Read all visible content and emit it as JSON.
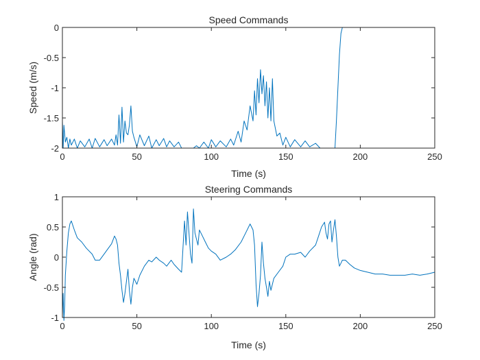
{
  "chart_data": [
    {
      "type": "line",
      "title": "Speed Commands",
      "xlabel": "Time (s)",
      "ylabel": "Speed (m/s)",
      "xlim": [
        0,
        250
      ],
      "ylim": [
        -2,
        0
      ],
      "xticks": [
        0,
        50,
        100,
        150,
        200,
        250
      ],
      "yticks": [
        0,
        -0.5,
        -1,
        -1.5,
        -2
      ],
      "xtick_labels": [
        "0",
        "50",
        "100",
        "150",
        "200",
        "250"
      ],
      "ytick_labels": [
        "0",
        "-0.5",
        "-1",
        "-1.5",
        "-2"
      ],
      "grid": false,
      "series": [
        {
          "name": "speed",
          "color": "#0072BD",
          "x": [
            0,
            0.5,
            1,
            2,
            3,
            4,
            5,
            6,
            8,
            10,
            12,
            15,
            18,
            20,
            22,
            25,
            28,
            30,
            33,
            35,
            36,
            37,
            38,
            39,
            40,
            41,
            42,
            43,
            44,
            45,
            46,
            47,
            48,
            50,
            52,
            55,
            58,
            60,
            63,
            65,
            68,
            70,
            72,
            75,
            78,
            80,
            82,
            85,
            88,
            90,
            92,
            95,
            98,
            100,
            103,
            106,
            110,
            113,
            115,
            118,
            120,
            122,
            124,
            126,
            128,
            129,
            130,
            131,
            132,
            133,
            134,
            135,
            136,
            137,
            138,
            139,
            140,
            141,
            142,
            144,
            146,
            148,
            150,
            153,
            156,
            160,
            163,
            166,
            170,
            173,
            175,
            178,
            181,
            183,
            184,
            186,
            187,
            188,
            190,
            200,
            210,
            220,
            230,
            240,
            250
          ],
          "y": [
            -1.55,
            -2.0,
            -1.62,
            -1.9,
            -1.82,
            -2.0,
            -1.85,
            -1.95,
            -1.85,
            -2.0,
            -1.88,
            -1.98,
            -1.85,
            -2.0,
            -1.84,
            -1.98,
            -1.86,
            -1.96,
            -1.85,
            -1.95,
            -1.78,
            -1.95,
            -1.45,
            -1.92,
            -1.32,
            -1.9,
            -1.55,
            -1.75,
            -1.78,
            -1.62,
            -1.3,
            -1.72,
            -1.82,
            -1.98,
            -1.78,
            -1.96,
            -1.8,
            -2.0,
            -1.86,
            -1.96,
            -1.84,
            -1.98,
            -1.88,
            -1.98,
            -1.9,
            -2.0,
            -2.0,
            -2.0,
            -2.0,
            -1.96,
            -2.0,
            -1.9,
            -2.0,
            -1.86,
            -1.98,
            -1.88,
            -1.98,
            -1.85,
            -1.95,
            -1.72,
            -1.9,
            -1.55,
            -1.7,
            -1.3,
            -1.55,
            -1.05,
            -1.45,
            -0.85,
            -1.25,
            -0.7,
            -1.1,
            -0.8,
            -1.3,
            -0.9,
            -1.5,
            -1.0,
            -1.55,
            -0.85,
            -1.55,
            -1.8,
            -1.75,
            -1.95,
            -1.82,
            -1.98,
            -1.86,
            -1.98,
            -1.88,
            -1.98,
            -1.92,
            -2.0,
            -2.0,
            -2.0,
            -2.0,
            -2.0,
            -1.55,
            -0.45,
            -0.1,
            0.0,
            0.0,
            0.0,
            0.0,
            0.0,
            0.0,
            0.0,
            0.0
          ]
        }
      ]
    },
    {
      "type": "line",
      "title": "Steering Commands",
      "xlabel": "Time (s)",
      "ylabel": "Angle (rad)",
      "xlim": [
        0,
        250
      ],
      "ylim": [
        -1,
        1
      ],
      "xticks": [
        0,
        50,
        100,
        150,
        200,
        250
      ],
      "yticks": [
        1,
        0.5,
        0,
        -0.5,
        -1
      ],
      "xtick_labels": [
        "0",
        "50",
        "100",
        "150",
        "200",
        "250"
      ],
      "ytick_labels": [
        "1",
        "0.5",
        "0",
        "-0.5",
        "-1"
      ],
      "grid": false,
      "series": [
        {
          "name": "steering",
          "color": "#0072BD",
          "x": [
            0,
            0.5,
            1,
            1.5,
            2,
            3,
            4,
            5,
            6,
            8,
            10,
            13,
            16,
            20,
            22,
            25,
            28,
            30,
            33,
            35,
            36,
            37,
            38,
            39,
            40,
            41,
            42,
            43,
            44,
            45,
            46,
            47,
            48,
            50,
            52,
            55,
            58,
            60,
            63,
            65,
            68,
            70,
            73,
            75,
            78,
            80,
            82,
            83,
            84,
            85,
            86,
            87,
            88,
            89,
            90,
            91,
            92,
            94,
            96,
            98,
            100,
            103,
            106,
            110,
            113,
            116,
            120,
            123,
            126,
            128,
            129,
            130,
            131,
            132,
            133,
            134,
            135,
            136,
            137,
            138,
            139,
            140,
            142,
            145,
            148,
            150,
            153,
            156,
            160,
            163,
            166,
            170,
            172,
            174,
            176,
            177,
            178,
            179,
            180,
            181,
            182,
            183,
            184,
            185,
            186,
            187,
            188,
            190,
            193,
            196,
            200,
            205,
            210,
            215,
            220,
            225,
            230,
            235,
            240,
            245,
            250
          ],
          "y": [
            -0.95,
            -0.6,
            -1.05,
            -0.8,
            -0.3,
            0.1,
            0.4,
            0.55,
            0.6,
            0.45,
            0.32,
            0.25,
            0.15,
            0.05,
            -0.05,
            -0.05,
            0.05,
            0.12,
            0.22,
            0.35,
            0.3,
            0.2,
            -0.1,
            -0.3,
            -0.55,
            -0.75,
            -0.6,
            -0.4,
            -0.2,
            -0.55,
            -0.78,
            -0.5,
            -0.35,
            -0.45,
            -0.3,
            -0.15,
            -0.05,
            -0.08,
            0.0,
            -0.05,
            -0.1,
            -0.15,
            -0.05,
            -0.12,
            -0.2,
            -0.25,
            0.6,
            0.2,
            0.75,
            0.4,
            0.05,
            -0.1,
            0.8,
            0.4,
            0.3,
            0.2,
            0.45,
            0.35,
            0.25,
            0.15,
            0.1,
            0.05,
            -0.05,
            0.0,
            0.05,
            0.12,
            0.25,
            0.4,
            0.55,
            0.45,
            0.2,
            -0.45,
            -0.82,
            -0.6,
            -0.3,
            0.25,
            -0.1,
            -0.35,
            -0.5,
            -0.65,
            -0.4,
            -0.55,
            -0.35,
            -0.25,
            -0.15,
            0.0,
            0.05,
            0.05,
            0.08,
            0.0,
            0.1,
            0.2,
            0.35,
            0.5,
            0.58,
            0.4,
            0.3,
            0.55,
            0.6,
            0.25,
            0.45,
            0.62,
            0.35,
            0.0,
            -0.15,
            -0.1,
            -0.05,
            -0.05,
            -0.12,
            -0.18,
            -0.22,
            -0.25,
            -0.28,
            -0.28,
            -0.3,
            -0.3,
            -0.3,
            -0.28,
            -0.3,
            -0.28,
            -0.25
          ]
        }
      ]
    }
  ]
}
